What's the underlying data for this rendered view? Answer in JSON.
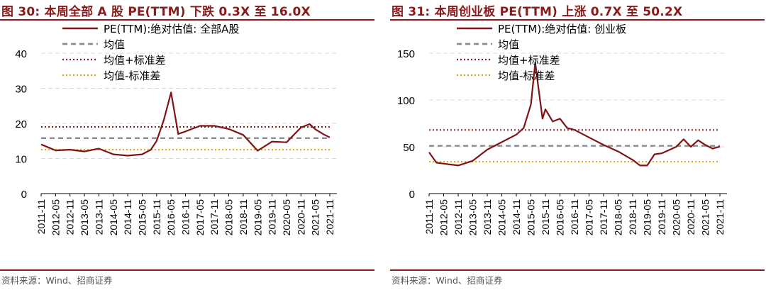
{
  "source_text": "资料来源：Wind、招商证券",
  "colors": {
    "pe_line": "#7f1416",
    "mean_line": "#8c8c8c",
    "plus_std_line": "#8b1a1a",
    "minus_std_line": "#e0a20e",
    "grid": "#d9d9d9",
    "title": "#8b1a1a"
  },
  "chart_data": [
    {
      "type": "line",
      "title": "图 30:  本周全部 A 股 PE(TTM) 下跌 0.3X 至 16.0X",
      "x_tick_labels": [
        "2011-11",
        "2012-05",
        "2012-11",
        "2013-05",
        "2013-11",
        "2014-05",
        "2014-11",
        "2015-05",
        "2015-11",
        "2016-05",
        "2016-11",
        "2017-05",
        "2017-11",
        "2018-05",
        "2018-11",
        "2019-05",
        "2019-11",
        "2020-05",
        "2020-11",
        "2021-05",
        "2021-11"
      ],
      "y_ticks": [
        0,
        10,
        20,
        30,
        40
      ],
      "ylim": [
        0,
        40
      ],
      "grid": "horizontal dashed",
      "legend_position": "top-center",
      "series": [
        {
          "name": "PE(TTM):绝对估值: 全部A股",
          "style": "solid",
          "x": [
            0,
            1,
            2,
            3,
            4,
            5,
            6,
            7,
            7.6,
            8,
            8.5,
            9,
            9.5,
            10,
            11,
            12,
            13,
            14,
            15,
            16,
            17,
            18,
            18.6,
            19,
            19.6,
            20
          ],
          "y": [
            14,
            12.3,
            12.5,
            12,
            12.8,
            11.2,
            10.8,
            11.2,
            12.5,
            15,
            21,
            28.8,
            17,
            17.7,
            19.3,
            19.3,
            18.4,
            16.7,
            12.2,
            14.8,
            14.6,
            18.8,
            19.8,
            18.3,
            16.8,
            16
          ]
        },
        {
          "name": "均值",
          "style": "dashed",
          "value": 15.8
        },
        {
          "name": "均值+标准差",
          "style": "dotted",
          "value": 19
        },
        {
          "name": "均值-标准差",
          "style": "dotted",
          "value": 12.5
        }
      ]
    },
    {
      "type": "line",
      "title": "图 31:  本周创业板 PE(TTM) 上涨 0.7X 至 50.2X",
      "x_tick_labels": [
        "2011-11",
        "2012-05",
        "2012-11",
        "2013-05",
        "2013-11",
        "2014-05",
        "2014-11",
        "2015-05",
        "2015-11",
        "2016-05",
        "2016-11",
        "2017-05",
        "2017-11",
        "2018-05",
        "2018-11",
        "2019-05",
        "2019-11",
        "2020-05",
        "2020-11",
        "2021-05",
        "2021-11"
      ],
      "y_ticks": [
        0,
        50,
        100,
        150
      ],
      "ylim": [
        0,
        150
      ],
      "grid": "horizontal dashed",
      "legend_position": "top-center",
      "series": [
        {
          "name": "PE(TTM):绝对估值: 创业板",
          "style": "solid",
          "x": [
            0,
            0.5,
            1,
            2,
            3,
            4,
            5,
            6,
            6.5,
            7,
            7.3,
            7.5,
            7.8,
            8,
            8.5,
            9,
            9.5,
            10,
            11,
            12,
            13,
            14,
            14.5,
            15,
            15.5,
            16,
            17,
            17.5,
            18,
            18.5,
            19,
            19.5,
            20
          ],
          "y": [
            44,
            33,
            32,
            30,
            35,
            47,
            55,
            63,
            70,
            95,
            140,
            115,
            80,
            90,
            77,
            80,
            70,
            68,
            60,
            52,
            45,
            36,
            30,
            30,
            42,
            43,
            50,
            58,
            50,
            57,
            52,
            48,
            50.2
          ]
        },
        {
          "name": "均值",
          "style": "dashed",
          "value": 51
        },
        {
          "name": "均值+标准差",
          "style": "dotted",
          "value": 68
        },
        {
          "name": "均值-标准差",
          "style": "dotted",
          "value": 34
        }
      ]
    }
  ]
}
